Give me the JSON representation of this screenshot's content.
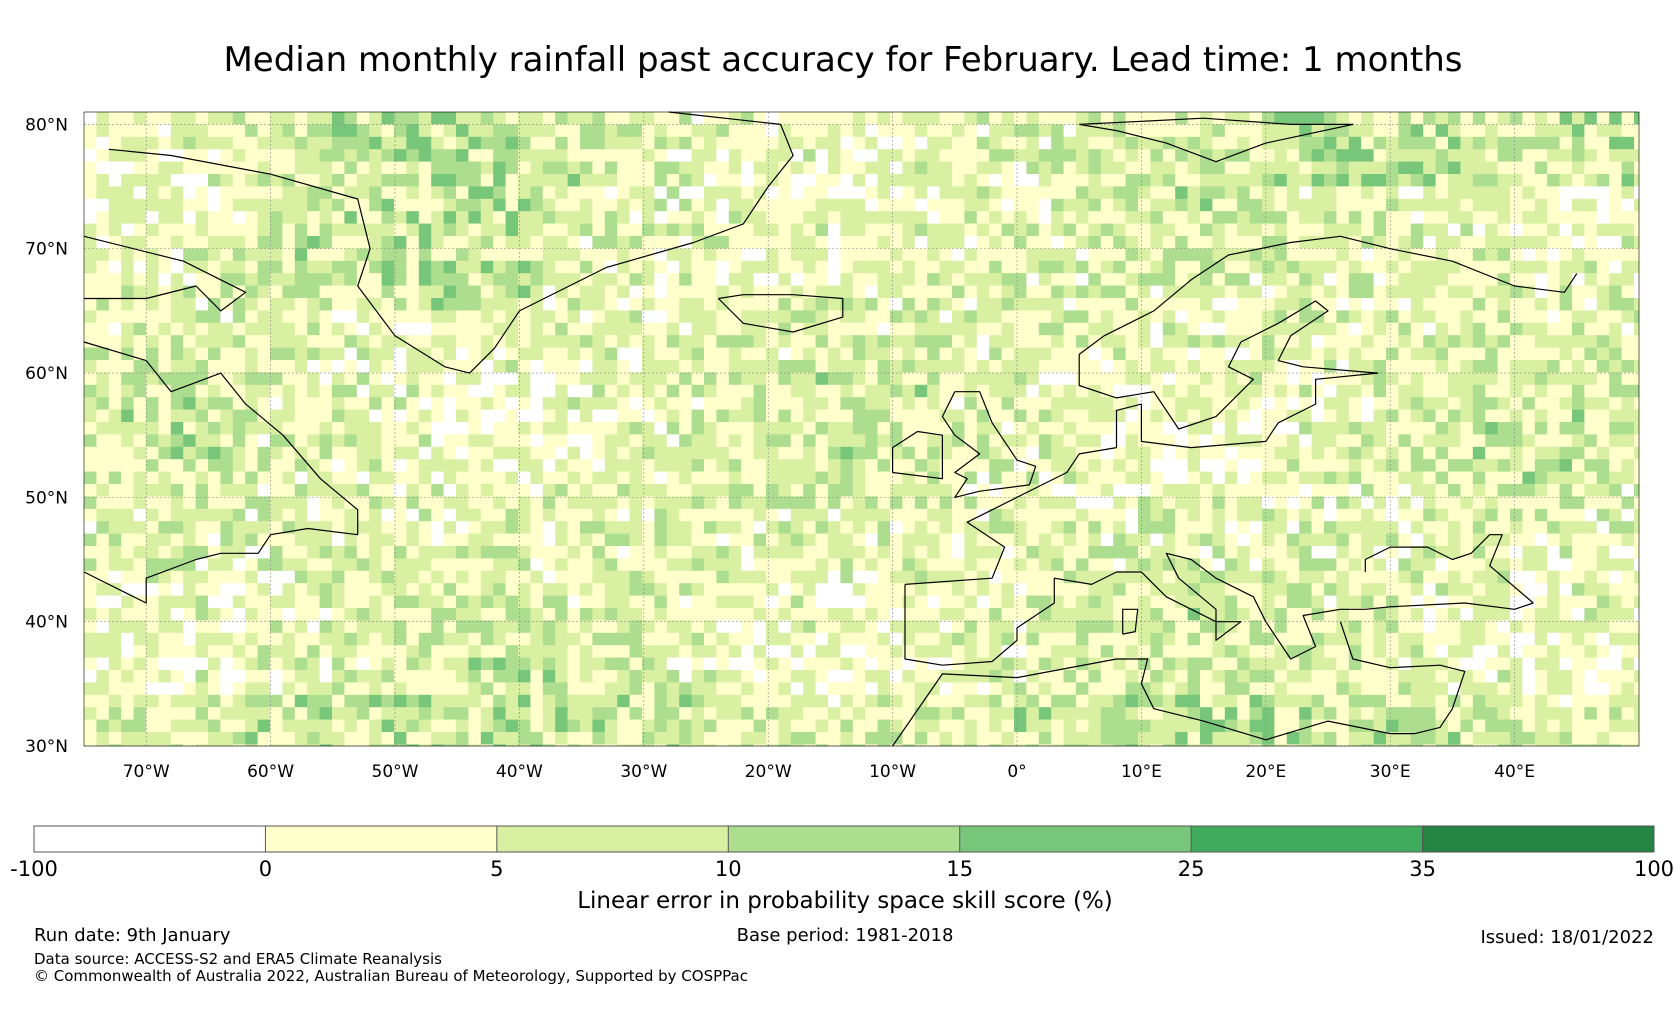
{
  "title": "Median monthly rainfall past accuracy for February. Lead time: 1 months",
  "map": {
    "lat_range": [
      30,
      81
    ],
    "lon_range": [
      -75,
      50
    ],
    "lat_ticks": [
      {
        "value": 80,
        "label": "80°N"
      },
      {
        "value": 70,
        "label": "70°N"
      },
      {
        "value": 60,
        "label": "60°N"
      },
      {
        "value": 50,
        "label": "50°N"
      },
      {
        "value": 40,
        "label": "40°N"
      },
      {
        "value": 30,
        "label": "30°N"
      }
    ],
    "lon_ticks": [
      {
        "value": -70,
        "label": "70°W"
      },
      {
        "value": -60,
        "label": "60°W"
      },
      {
        "value": -50,
        "label": "50°W"
      },
      {
        "value": -40,
        "label": "40°W"
      },
      {
        "value": -30,
        "label": "30°W"
      },
      {
        "value": -20,
        "label": "20°W"
      },
      {
        "value": -10,
        "label": "10°W"
      },
      {
        "value": 0,
        "label": "0°"
      },
      {
        "value": 10,
        "label": "10°E"
      },
      {
        "value": 20,
        "label": "20°E"
      },
      {
        "value": 30,
        "label": "30°E"
      },
      {
        "value": 40,
        "label": "40°E"
      }
    ],
    "coastlines": [
      [
        [
          -75,
          44
        ],
        [
          -70,
          41.5
        ],
        [
          -70,
          43.5
        ],
        [
          -66,
          45
        ],
        [
          -64,
          45.5
        ],
        [
          -61,
          45.5
        ],
        [
          -60,
          47
        ],
        [
          -57,
          47.5
        ],
        [
          -53,
          47
        ],
        [
          -53,
          49
        ],
        [
          -56,
          51.5
        ],
        [
          -59,
          55
        ],
        [
          -62,
          57.5
        ],
        [
          -64,
          60
        ],
        [
          -68,
          58.5
        ],
        [
          -70,
          61
        ],
        [
          -75,
          62.5
        ]
      ],
      [
        [
          -75,
          66
        ],
        [
          -70,
          66
        ],
        [
          -66,
          67
        ],
        [
          -64,
          65
        ],
        [
          -62,
          66.5
        ],
        [
          -67,
          69
        ],
        [
          -75,
          71
        ]
      ],
      [
        [
          -73,
          78
        ],
        [
          -68,
          77.5
        ],
        [
          -60,
          76
        ],
        [
          -53,
          74
        ],
        [
          -52,
          70
        ],
        [
          -53,
          67
        ],
        [
          -50,
          63
        ],
        [
          -46,
          60.5
        ],
        [
          -44,
          60
        ],
        [
          -42,
          62
        ],
        [
          -40,
          65
        ],
        [
          -33,
          68.5
        ],
        [
          -26,
          70.5
        ],
        [
          -22,
          72
        ],
        [
          -20,
          75
        ],
        [
          -18,
          77.5
        ],
        [
          -19,
          80
        ],
        [
          -28,
          81
        ]
      ],
      [
        [
          -24,
          66
        ],
        [
          -22,
          64
        ],
        [
          -18,
          63.3
        ],
        [
          -14,
          64.5
        ],
        [
          -14,
          66
        ],
        [
          -18,
          66.3
        ],
        [
          -22,
          66.3
        ],
        [
          -24,
          66
        ]
      ],
      [
        [
          -10,
          52
        ],
        [
          -6,
          51.5
        ],
        [
          -6,
          55
        ],
        [
          -8,
          55.3
        ],
        [
          -10,
          54
        ],
        [
          -10,
          52
        ]
      ],
      [
        [
          -5,
          58.5
        ],
        [
          -3,
          58.5
        ],
        [
          -2,
          56
        ],
        [
          0,
          53
        ],
        [
          1.5,
          52.5
        ],
        [
          1,
          51
        ],
        [
          -3,
          50.5
        ],
        [
          -5,
          50
        ],
        [
          -4,
          51.5
        ],
        [
          -5,
          52
        ],
        [
          -3,
          53.5
        ],
        [
          -5,
          55
        ],
        [
          -6,
          56.5
        ],
        [
          -5,
          58.5
        ]
      ],
      [
        [
          -9,
          43
        ],
        [
          -2,
          43.5
        ],
        [
          -1,
          46
        ],
        [
          -4,
          48
        ],
        [
          -2,
          49
        ],
        [
          2,
          51
        ],
        [
          4,
          52
        ],
        [
          5,
          53.5
        ],
        [
          8,
          54
        ],
        [
          8,
          57
        ],
        [
          10,
          57.5
        ],
        [
          10,
          54.5
        ],
        [
          14,
          54
        ],
        [
          20,
          54.5
        ],
        [
          21,
          56
        ],
        [
          24,
          57.5
        ],
        [
          24,
          59.5
        ],
        [
          29,
          60
        ],
        [
          23,
          60.5
        ],
        [
          21,
          61
        ],
        [
          22,
          63
        ],
        [
          25,
          65
        ],
        [
          24,
          65.8
        ],
        [
          21,
          64
        ],
        [
          18,
          62.5
        ],
        [
          17,
          60.5
        ],
        [
          19,
          59.5
        ],
        [
          16,
          56.5
        ],
        [
          13,
          55.5
        ],
        [
          11,
          58.5
        ],
        [
          8,
          58
        ],
        [
          5,
          59
        ],
        [
          5,
          61.5
        ],
        [
          7,
          63
        ],
        [
          11,
          65
        ],
        [
          14,
          67.5
        ],
        [
          17,
          69.5
        ],
        [
          22,
          70.5
        ],
        [
          26,
          71
        ],
        [
          30,
          70
        ],
        [
          35,
          69
        ],
        [
          40,
          67
        ],
        [
          44,
          66.5
        ],
        [
          45,
          68
        ]
      ],
      [
        [
          -9,
          43
        ],
        [
          -9,
          37
        ],
        [
          -6,
          36.5
        ],
        [
          -2,
          36.8
        ],
        [
          0,
          38.5
        ],
        [
          0,
          39.5
        ],
        [
          3,
          41.5
        ],
        [
          3,
          43.5
        ],
        [
          6,
          43
        ],
        [
          8,
          44
        ],
        [
          10,
          44
        ],
        [
          12,
          42
        ],
        [
          16,
          40
        ],
        [
          18,
          40
        ],
        [
          16,
          38.5
        ],
        [
          16,
          41
        ],
        [
          13,
          43.5
        ],
        [
          12,
          45.5
        ],
        [
          14,
          45
        ],
        [
          16,
          43.5
        ],
        [
          19,
          42
        ],
        [
          20,
          40
        ],
        [
          22,
          37
        ],
        [
          24,
          38
        ],
        [
          23,
          40.5
        ],
        [
          26,
          41
        ],
        [
          28,
          41
        ],
        [
          30,
          41.2
        ],
        [
          36,
          41.5
        ],
        [
          40,
          41
        ],
        [
          41.5,
          41.5
        ]
      ],
      [
        [
          26,
          40
        ],
        [
          27,
          37
        ],
        [
          30,
          36.3
        ],
        [
          34,
          36.5
        ],
        [
          36,
          36
        ],
        [
          35,
          33
        ],
        [
          34,
          31.5
        ],
        [
          32,
          31
        ],
        [
          30,
          31
        ],
        [
          25,
          32
        ],
        [
          20,
          30.5
        ],
        [
          15,
          32
        ],
        [
          11,
          33
        ],
        [
          10,
          35
        ],
        [
          10.5,
          37
        ],
        [
          8,
          37
        ],
        [
          0,
          35.5
        ],
        [
          -6,
          35.8
        ],
        [
          -10,
          30
        ]
      ],
      [
        [
          28,
          44
        ],
        [
          28,
          45
        ],
        [
          30,
          46
        ],
        [
          33,
          46
        ],
        [
          35,
          45
        ],
        [
          36.5,
          45.5
        ],
        [
          38,
          47
        ],
        [
          39,
          47
        ],
        [
          38,
          44.5
        ],
        [
          41.5,
          41.5
        ]
      ],
      [
        [
          8.5,
          39
        ],
        [
          9.5,
          39.2
        ],
        [
          9.7,
          41
        ],
        [
          8.5,
          41
        ],
        [
          8.5,
          39
        ]
      ],
      [
        [
          5,
          80
        ],
        [
          15,
          80.5
        ],
        [
          22,
          80
        ],
        [
          27,
          80
        ],
        [
          20,
          78.5
        ],
        [
          16,
          77
        ],
        [
          12,
          78.5
        ],
        [
          8,
          79.5
        ],
        [
          5,
          80
        ]
      ]
    ],
    "legend_bins": [
      "#ffffff",
      "#ffffcc",
      "#d9f0a3",
      "#addd8e",
      "#78c679",
      "#41ab5d",
      "#238443"
    ]
  },
  "colorbar": {
    "tick_labels": [
      "-100",
      "0",
      "5",
      "10",
      "15",
      "25",
      "35",
      "100"
    ],
    "label": "Linear error in probability space skill score (%)"
  },
  "footer": {
    "run_date": "Run date: 9th January",
    "base_period": "Base period: 1981-2018",
    "issued": "Issued: 18/01/2022",
    "data_source": "Data source: ACCESS-S2 and ERA5 Climate Reanalysis",
    "copyright": "© Commonwealth of Australia 2022, Australian Bureau of Meteorology, Supported by COSPPac"
  }
}
